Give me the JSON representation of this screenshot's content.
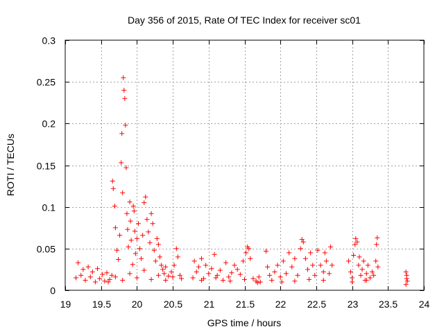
{
  "chart_data": {
    "type": "scatter",
    "title": "Day 356 of 2015, Rate Of TEC Index for receiver sc01",
    "xlabel": "GPS time / hours",
    "ylabel": "ROTI / TECUs",
    "xlim": [
      19,
      24
    ],
    "ylim": [
      0,
      0.3
    ],
    "x_ticks": [
      "19",
      "19.5",
      "20",
      "20.5",
      "21",
      "21.5",
      "22",
      "22.5",
      "23",
      "23.5",
      "24"
    ],
    "y_ticks": [
      "0",
      "0.05",
      "0.1",
      "0.15",
      "0.2",
      "0.25",
      "0.3"
    ],
    "grid": true,
    "marker": "+",
    "color": "#ff0000",
    "series": [
      {
        "name": "ROTI",
        "points": [
          [
            19.15,
            0.015
          ],
          [
            19.18,
            0.033
          ],
          [
            19.22,
            0.018
          ],
          [
            19.25,
            0.025
          ],
          [
            19.28,
            0.012
          ],
          [
            19.32,
            0.028
          ],
          [
            19.35,
            0.016
          ],
          [
            19.38,
            0.022
          ],
          [
            19.42,
            0.01
          ],
          [
            19.45,
            0.026
          ],
          [
            19.48,
            0.014
          ],
          [
            19.52,
            0.019
          ],
          [
            19.55,
            0.011
          ],
          [
            19.58,
            0.021
          ],
          [
            19.62,
            0.013
          ],
          [
            19.65,
            0.018
          ],
          [
            19.66,
            0.131
          ],
          [
            19.67,
            0.122
          ],
          [
            19.69,
            0.101
          ],
          [
            19.7,
            0.075
          ],
          [
            19.72,
            0.048
          ],
          [
            19.74,
            0.037
          ],
          [
            19.76,
            0.066
          ],
          [
            19.78,
            0.153
          ],
          [
            19.79,
            0.188
          ],
          [
            19.8,
            0.117
          ],
          [
            19.81,
            0.255
          ],
          [
            19.82,
            0.24
          ],
          [
            19.83,
            0.23
          ],
          [
            19.84,
            0.198
          ],
          [
            19.85,
            0.147
          ],
          [
            19.86,
            0.092
          ],
          [
            19.87,
            0.073
          ],
          [
            19.88,
            0.052
          ],
          [
            19.9,
            0.106
          ],
          [
            19.91,
            0.083
          ],
          [
            19.92,
            0.06
          ],
          [
            19.94,
            0.031
          ],
          [
            19.95,
            0.101
          ],
          [
            19.96,
            0.095
          ],
          [
            19.97,
            0.071
          ],
          [
            19.98,
            0.044
          ],
          [
            20.0,
            0.062
          ],
          [
            20.02,
            0.08
          ],
          [
            20.04,
            0.05
          ],
          [
            20.06,
            0.038
          ],
          [
            20.08,
            0.066
          ],
          [
            20.1,
            0.105
          ],
          [
            20.12,
            0.112
          ],
          [
            20.14,
            0.085
          ],
          [
            20.16,
            0.07
          ],
          [
            20.18,
            0.057
          ],
          [
            20.2,
            0.092
          ],
          [
            20.22,
            0.08
          ],
          [
            20.24,
            0.048
          ],
          [
            20.26,
            0.035
          ],
          [
            20.28,
            0.062
          ],
          [
            20.3,
            0.055
          ],
          [
            20.32,
            0.04
          ],
          [
            20.34,
            0.03
          ],
          [
            20.36,
            0.025
          ],
          [
            20.38,
            0.02
          ],
          [
            20.4,
            0.028
          ],
          [
            20.44,
            0.017
          ],
          [
            20.48,
            0.022
          ],
          [
            20.52,
            0.03
          ],
          [
            20.55,
            0.05
          ],
          [
            20.57,
            0.04
          ],
          [
            20.6,
            0.018
          ],
          [
            20.62,
            0.014
          ],
          [
            19.6,
            0.01
          ],
          [
            19.7,
            0.016
          ],
          [
            19.8,
            0.012
          ],
          [
            19.9,
            0.02
          ],
          [
            20.0,
            0.015
          ],
          [
            20.1,
            0.024
          ],
          [
            20.2,
            0.013
          ],
          [
            20.3,
            0.018
          ],
          [
            20.4,
            0.012
          ],
          [
            20.5,
            0.016
          ],
          [
            20.78,
            0.015
          ],
          [
            20.8,
            0.035
          ],
          [
            20.83,
            0.022
          ],
          [
            20.86,
            0.028
          ],
          [
            20.9,
            0.038
          ],
          [
            20.93,
            0.014
          ],
          [
            20.96,
            0.03
          ],
          [
            21.0,
            0.02
          ],
          [
            21.04,
            0.026
          ],
          [
            21.08,
            0.043
          ],
          [
            21.12,
            0.018
          ],
          [
            21.16,
            0.024
          ],
          [
            21.2,
            0.012
          ],
          [
            21.24,
            0.033
          ],
          [
            21.28,
            0.016
          ],
          [
            21.32,
            0.021
          ],
          [
            21.36,
            0.03
          ],
          [
            21.4,
            0.025
          ],
          [
            21.44,
            0.019
          ],
          [
            21.48,
            0.035
          ],
          [
            21.52,
            0.045
          ],
          [
            21.54,
            0.052
          ],
          [
            21.56,
            0.05
          ],
          [
            21.58,
            0.038
          ],
          [
            21.62,
            0.014
          ],
          [
            21.66,
            0.011
          ],
          [
            21.7,
            0.016
          ],
          [
            21.72,
            0.01
          ],
          [
            20.9,
            0.012
          ],
          [
            21.1,
            0.015
          ],
          [
            21.3,
            0.011
          ],
          [
            21.5,
            0.013
          ],
          [
            21.68,
            0.009
          ],
          [
            21.8,
            0.047
          ],
          [
            21.82,
            0.028
          ],
          [
            21.85,
            0.018
          ],
          [
            21.88,
            0.012
          ],
          [
            21.92,
            0.022
          ],
          [
            21.96,
            0.03
          ],
          [
            22.0,
            0.016
          ],
          [
            22.04,
            0.035
          ],
          [
            22.08,
            0.02
          ],
          [
            22.12,
            0.045
          ],
          [
            22.16,
            0.028
          ],
          [
            22.2,
            0.038
          ],
          [
            22.24,
            0.018
          ],
          [
            22.28,
            0.05
          ],
          [
            22.3,
            0.061
          ],
          [
            22.32,
            0.058
          ],
          [
            22.35,
            0.038
          ],
          [
            22.38,
            0.025
          ],
          [
            22.42,
            0.045
          ],
          [
            22.45,
            0.03
          ],
          [
            22.48,
            0.018
          ],
          [
            22.52,
            0.048
          ],
          [
            22.56,
            0.03
          ],
          [
            22.6,
            0.022
          ],
          [
            22.62,
            0.045
          ],
          [
            22.64,
            0.035
          ],
          [
            22.68,
            0.02
          ],
          [
            22.7,
            0.052
          ],
          [
            22.72,
            0.03
          ],
          [
            22.02,
            0.01
          ],
          [
            22.2,
            0.011
          ],
          [
            22.4,
            0.013
          ],
          [
            22.6,
            0.012
          ],
          [
            22.95,
            0.035
          ],
          [
            22.98,
            0.022
          ],
          [
            23.0,
            0.015
          ],
          [
            23.02,
            0.042
          ],
          [
            23.04,
            0.055
          ],
          [
            23.05,
            0.062
          ],
          [
            23.07,
            0.058
          ],
          [
            23.09,
            0.03
          ],
          [
            23.1,
            0.04
          ],
          [
            23.12,
            0.018
          ],
          [
            23.14,
            0.025
          ],
          [
            23.16,
            0.035
          ],
          [
            23.18,
            0.012
          ],
          [
            23.2,
            0.02
          ],
          [
            23.22,
            0.03
          ],
          [
            23.25,
            0.015
          ],
          [
            23.28,
            0.022
          ],
          [
            23.3,
            0.018
          ],
          [
            23.33,
            0.035
          ],
          [
            23.34,
            0.055
          ],
          [
            23.35,
            0.063
          ],
          [
            23.36,
            0.028
          ],
          [
            23.0,
            0.01
          ],
          [
            23.2,
            0.012
          ],
          [
            23.75,
            0.022
          ],
          [
            23.76,
            0.018
          ],
          [
            23.76,
            0.014
          ],
          [
            23.77,
            0.011
          ],
          [
            23.75,
            0.007
          ]
        ]
      }
    ]
  }
}
